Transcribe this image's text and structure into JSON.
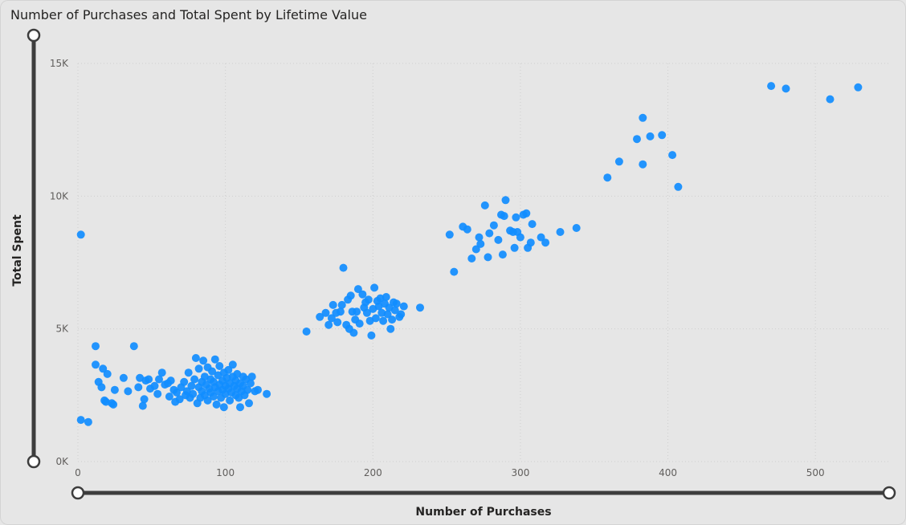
{
  "chart_data": {
    "type": "scatter",
    "title": "Number of Purchases and Total Spent by Lifetime Value",
    "xlabel": "Number of Purchases",
    "ylabel": "Total Spent",
    "xlim": [
      0,
      550
    ],
    "ylim": [
      0,
      15000
    ],
    "x_ticks": [
      {
        "value": 0,
        "label": "0"
      },
      {
        "value": 100,
        "label": "100"
      },
      {
        "value": 200,
        "label": "200"
      },
      {
        "value": 300,
        "label": "300"
      },
      {
        "value": 400,
        "label": "400"
      },
      {
        "value": 500,
        "label": "500"
      }
    ],
    "y_ticks": [
      {
        "value": 0,
        "label": "0K"
      },
      {
        "value": 5000,
        "label": "5K"
      },
      {
        "value": 10000,
        "label": "10K"
      },
      {
        "value": 15000,
        "label": "15K"
      }
    ],
    "grid": true,
    "point_color": "#118dff",
    "points": [
      [
        2,
        8550
      ],
      [
        2,
        1570
      ],
      [
        7,
        1490
      ],
      [
        12,
        4350
      ],
      [
        12,
        3650
      ],
      [
        14,
        3000
      ],
      [
        16,
        2800
      ],
      [
        17,
        3500
      ],
      [
        18,
        2300
      ],
      [
        19,
        2250
      ],
      [
        20,
        3300
      ],
      [
        23,
        2200
      ],
      [
        24,
        2150
      ],
      [
        25,
        2700
      ],
      [
        31,
        3150
      ],
      [
        34,
        2650
      ],
      [
        38,
        4350
      ],
      [
        41,
        2800
      ],
      [
        42,
        3150
      ],
      [
        44,
        2100
      ],
      [
        45,
        2350
      ],
      [
        46,
        3050
      ],
      [
        48,
        3100
      ],
      [
        49,
        2750
      ],
      [
        52,
        2850
      ],
      [
        54,
        2550
      ],
      [
        55,
        3100
      ],
      [
        57,
        3350
      ],
      [
        59,
        2900
      ],
      [
        61,
        2950
      ],
      [
        62,
        2450
      ],
      [
        63,
        3050
      ],
      [
        65,
        2700
      ],
      [
        66,
        2250
      ],
      [
        67,
        2600
      ],
      [
        69,
        2350
      ],
      [
        70,
        2800
      ],
      [
        72,
        3000
      ],
      [
        73,
        2500
      ],
      [
        74,
        2650
      ],
      [
        75,
        3350
      ],
      [
        76,
        2400
      ],
      [
        77,
        2850
      ],
      [
        78,
        2550
      ],
      [
        79,
        3100
      ],
      [
        80,
        3900
      ],
      [
        81,
        2200
      ],
      [
        82,
        2800
      ],
      [
        82,
        3500
      ],
      [
        83,
        2400
      ],
      [
        84,
        3000
      ],
      [
        84,
        2650
      ],
      [
        85,
        3800
      ],
      [
        86,
        3200
      ],
      [
        86,
        2500
      ],
      [
        87,
        2900
      ],
      [
        88,
        3550
      ],
      [
        88,
        2300
      ],
      [
        89,
        2750
      ],
      [
        90,
        3100
      ],
      [
        90,
        2600
      ],
      [
        91,
        3400
      ],
      [
        92,
        2450
      ],
      [
        92,
        3000
      ],
      [
        93,
        3850
      ],
      [
        93,
        2800
      ],
      [
        94,
        2150
      ],
      [
        95,
        2650
      ],
      [
        95,
        3250
      ],
      [
        96,
        2900
      ],
      [
        96,
        3600
      ],
      [
        97,
        2400
      ],
      [
        98,
        3050
      ],
      [
        98,
        2700
      ],
      [
        99,
        2050
      ],
      [
        99,
        3350
      ],
      [
        100,
        2850
      ],
      [
        100,
        2550
      ],
      [
        101,
        3150
      ],
      [
        102,
        2750
      ],
      [
        102,
        3450
      ],
      [
        103,
        2300
      ],
      [
        103,
        2950
      ],
      [
        104,
        2600
      ],
      [
        105,
        3200
      ],
      [
        105,
        3650
      ],
      [
        106,
        2850
      ],
      [
        107,
        2500
      ],
      [
        107,
        3050
      ],
      [
        108,
        2750
      ],
      [
        108,
        3300
      ],
      [
        109,
        2400
      ],
      [
        110,
        2950
      ],
      [
        110,
        2050
      ],
      [
        111,
        2650
      ],
      [
        112,
        3200
      ],
      [
        112,
        2850
      ],
      [
        113,
        2500
      ],
      [
        114,
        3100
      ],
      [
        115,
        2700
      ],
      [
        116,
        2200
      ],
      [
        117,
        2950
      ],
      [
        118,
        3200
      ],
      [
        120,
        2650
      ],
      [
        122,
        2700
      ],
      [
        128,
        2550
      ],
      [
        155,
        4900
      ],
      [
        164,
        5450
      ],
      [
        168,
        5600
      ],
      [
        170,
        5150
      ],
      [
        172,
        5400
      ],
      [
        173,
        5900
      ],
      [
        175,
        5600
      ],
      [
        176,
        5250
      ],
      [
        178,
        5650
      ],
      [
        179,
        5900
      ],
      [
        180,
        7300
      ],
      [
        182,
        5150
      ],
      [
        183,
        6100
      ],
      [
        184,
        5000
      ],
      [
        185,
        6250
      ],
      [
        186,
        5650
      ],
      [
        187,
        4850
      ],
      [
        188,
        5350
      ],
      [
        189,
        5650
      ],
      [
        190,
        6500
      ],
      [
        191,
        5200
      ],
      [
        193,
        6300
      ],
      [
        194,
        5800
      ],
      [
        195,
        6000
      ],
      [
        196,
        5600
      ],
      [
        197,
        6100
      ],
      [
        198,
        5300
      ],
      [
        199,
        4750
      ],
      [
        200,
        5750
      ],
      [
        201,
        6550
      ],
      [
        202,
        5400
      ],
      [
        203,
        6050
      ],
      [
        204,
        5850
      ],
      [
        205,
        6150
      ],
      [
        206,
        5600
      ],
      [
        207,
        5300
      ],
      [
        208,
        5950
      ],
      [
        209,
        6200
      ],
      [
        210,
        5550
      ],
      [
        211,
        5800
      ],
      [
        212,
        5000
      ],
      [
        213,
        5350
      ],
      [
        214,
        6000
      ],
      [
        215,
        5700
      ],
      [
        216,
        5950
      ],
      [
        218,
        5450
      ],
      [
        219,
        5550
      ],
      [
        221,
        5850
      ],
      [
        232,
        5800
      ],
      [
        252,
        8550
      ],
      [
        255,
        7150
      ],
      [
        261,
        8850
      ],
      [
        264,
        8750
      ],
      [
        267,
        7650
      ],
      [
        270,
        8000
      ],
      [
        272,
        8450
      ],
      [
        273,
        8200
      ],
      [
        276,
        9650
      ],
      [
        278,
        7700
      ],
      [
        279,
        8600
      ],
      [
        282,
        8900
      ],
      [
        285,
        8350
      ],
      [
        287,
        9300
      ],
      [
        288,
        7800
      ],
      [
        289,
        9250
      ],
      [
        290,
        9850
      ],
      [
        293,
        8700
      ],
      [
        295,
        8650
      ],
      [
        296,
        8050
      ],
      [
        297,
        9200
      ],
      [
        298,
        8650
      ],
      [
        300,
        8450
      ],
      [
        302,
        9300
      ],
      [
        304,
        9350
      ],
      [
        305,
        8050
      ],
      [
        307,
        8250
      ],
      [
        308,
        8950
      ],
      [
        314,
        8450
      ],
      [
        317,
        8250
      ],
      [
        327,
        8650
      ],
      [
        338,
        8800
      ],
      [
        359,
        10700
      ],
      [
        367,
        11300
      ],
      [
        379,
        12150
      ],
      [
        383,
        12950
      ],
      [
        383,
        11200
      ],
      [
        388,
        12250
      ],
      [
        396,
        12300
      ],
      [
        403,
        11550
      ],
      [
        407,
        10350
      ],
      [
        470,
        14150
      ],
      [
        480,
        14050
      ],
      [
        510,
        13650
      ],
      [
        529,
        14100
      ]
    ]
  }
}
